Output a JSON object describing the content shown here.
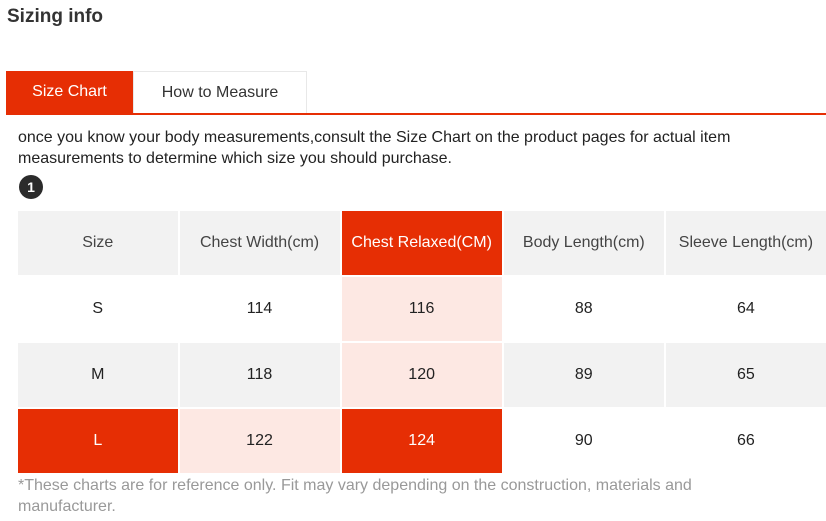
{
  "section": {
    "title": "Sizing info"
  },
  "tabs": [
    {
      "label": "Size Chart",
      "active": true
    },
    {
      "label": "How to Measure",
      "active": false
    }
  ],
  "intro_text": "once you know your body measurements,consult the Size Chart on the product pages for actual item measurements to determine which size you should purchase.",
  "step_badge": "1",
  "size_chart": {
    "headers": [
      "Size",
      "Chest Width(cm)",
      "Chest Relaxed(CM)",
      "Body Length(cm)",
      "Sleeve Length(cm)"
    ],
    "rows": [
      [
        "S",
        "114",
        "116",
        "88",
        "64"
      ],
      [
        "M",
        "118",
        "120",
        "89",
        "65"
      ],
      [
        "L",
        "122",
        "124",
        "90",
        "66"
      ]
    ],
    "highlighted_column": "Chest Relaxed(CM)",
    "highlighted_row": "L"
  },
  "footnote": "*These charts are for reference only. Fit may vary depending on the construction, materials and manufacturer.",
  "colors": {
    "accent": "#e62e04",
    "highlight_soft": "#fde8e3",
    "row_alt": "#f2f2f2",
    "footnote_text": "#999999"
  }
}
